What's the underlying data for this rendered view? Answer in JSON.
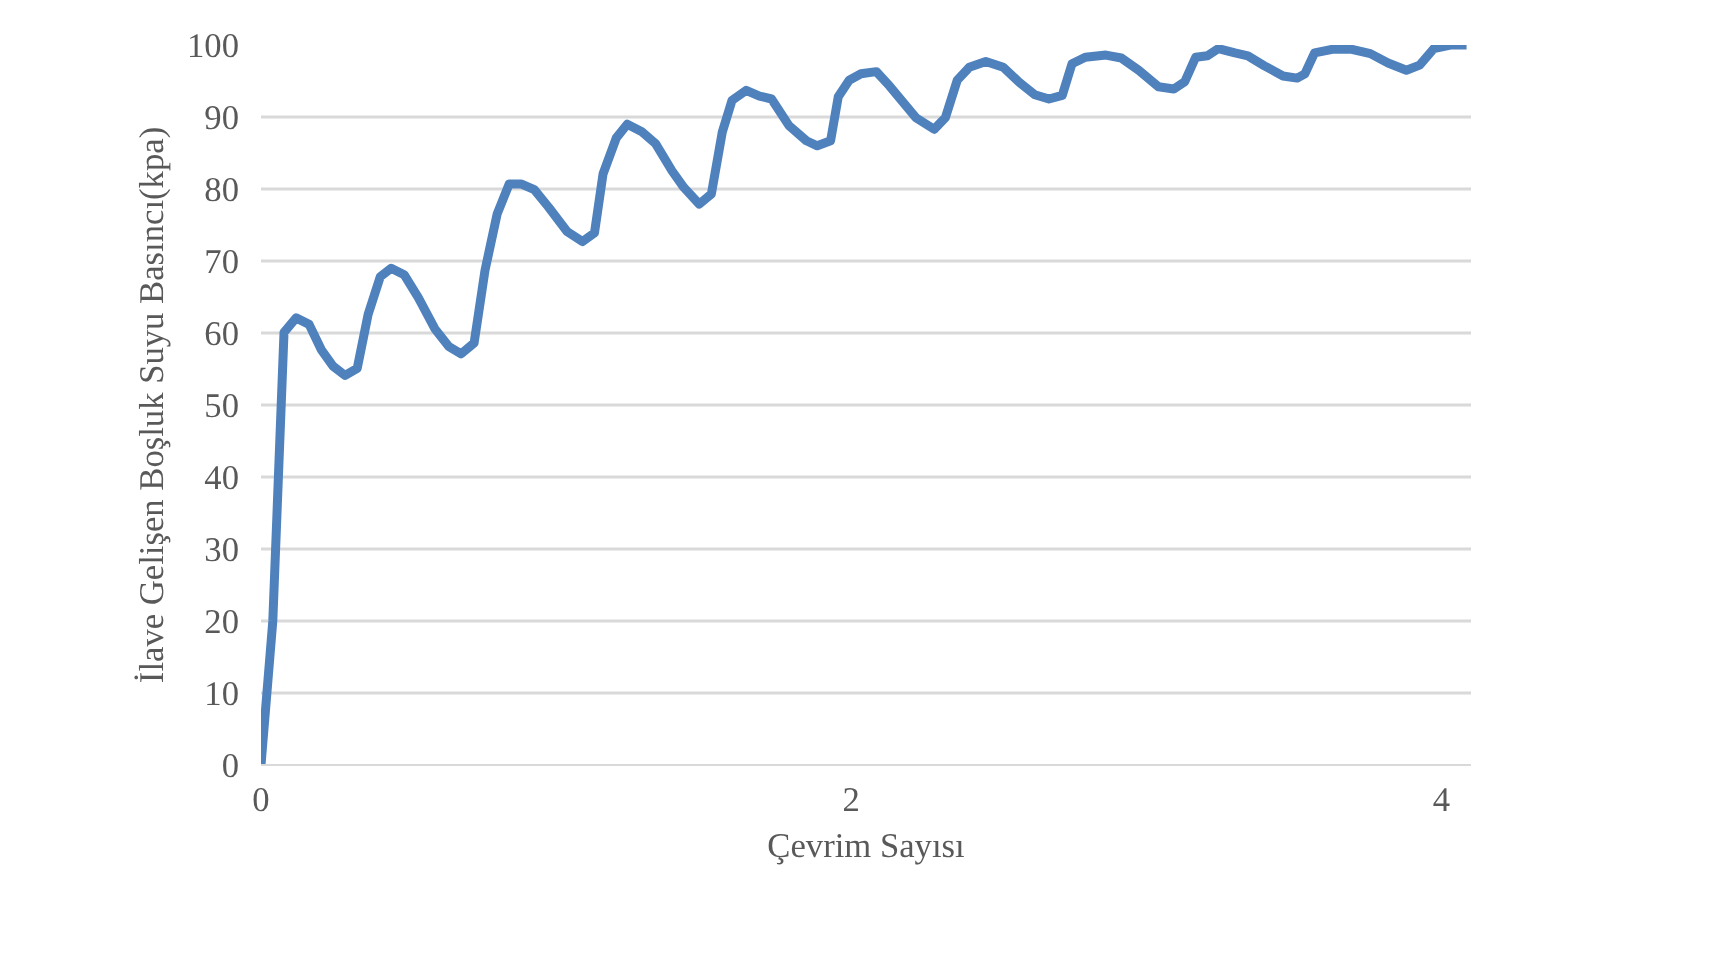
{
  "chart_data": {
    "type": "line",
    "xlabel": "Çevrim Sayısı",
    "ylabel": "İlave Gelişen Boşluk Suyu Basıncı(kpa)",
    "xlim": [
      0,
      4.1
    ],
    "xticks": [
      0,
      2,
      4
    ],
    "ylim": [
      0,
      100
    ],
    "yticks": [
      0,
      10,
      20,
      30,
      40,
      50,
      60,
      70,
      80,
      90,
      100
    ],
    "grid": "y",
    "marker": "none",
    "line_style": "solid",
    "series": [
      {
        "color": "#4f81bd",
        "x": [
          0,
          0.04,
          0.078,
          0.119,
          0.163,
          0.204,
          0.244,
          0.285,
          0.326,
          0.363,
          0.404,
          0.441,
          0.485,
          0.533,
          0.589,
          0.637,
          0.678,
          0.722,
          0.759,
          0.8,
          0.841,
          0.881,
          0.926,
          0.974,
          1.037,
          1.089,
          1.13,
          1.159,
          1.204,
          1.241,
          1.289,
          1.337,
          1.393,
          1.433,
          1.485,
          1.526,
          1.563,
          1.596,
          1.644,
          1.689,
          1.73,
          1.789,
          1.848,
          1.885,
          1.93,
          1.956,
          1.993,
          2.033,
          2.085,
          2.13,
          2.219,
          2.281,
          2.319,
          2.359,
          2.4,
          2.456,
          2.515,
          2.57,
          2.622,
          2.67,
          2.715,
          2.748,
          2.793,
          2.863,
          2.915,
          2.974,
          3.041,
          3.093,
          3.13,
          3.167,
          3.207,
          3.244,
          3.3,
          3.344,
          3.4,
          3.463,
          3.511,
          3.537,
          3.57,
          3.63,
          3.696,
          3.759,
          3.819,
          3.881,
          3.926,
          3.974,
          4.03,
          4.085
        ],
        "values": [
          0,
          20,
          60.1,
          62.1,
          61.2,
          57.7,
          55.4,
          54.1,
          55.1,
          62.6,
          67.8,
          69.0,
          68.1,
          64.9,
          60.6,
          58.1,
          57.1,
          58.6,
          68.7,
          76.5,
          80.7,
          80.7,
          79.9,
          77.5,
          74.1,
          72.7,
          73.9,
          82.1,
          87.1,
          89.0,
          88.0,
          86.3,
          82.5,
          80.2,
          77.9,
          79.3,
          87.9,
          92.3,
          93.7,
          92.9,
          92.5,
          88.8,
          86.7,
          86.0,
          86.7,
          92.8,
          95.1,
          96.0,
          96.3,
          94.3,
          89.9,
          88.3,
          89.9,
          95.1,
          96.9,
          97.7,
          96.9,
          94.8,
          93.1,
          92.5,
          93.0,
          97.4,
          98.3,
          98.6,
          98.2,
          96.5,
          94.2,
          93.9,
          94.9,
          98.3,
          98.5,
          99.5,
          98.9,
          98.5,
          97.1,
          95.7,
          95.4,
          96.0,
          98.9,
          99.4,
          99.4,
          98.8,
          97.5,
          96.5,
          97.2,
          99.5,
          100,
          100
        ]
      }
    ]
  }
}
